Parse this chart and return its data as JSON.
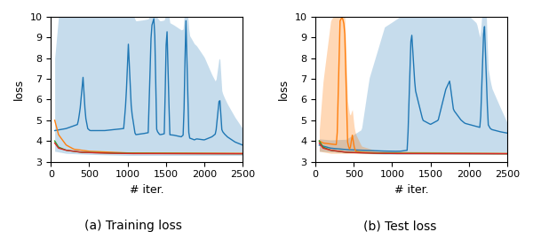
{
  "figsize": [
    6.0,
    2.62
  ],
  "dpi": 100,
  "xlim": [
    0,
    2500
  ],
  "ylim": [
    3,
    10
  ],
  "yticks": [
    3,
    4,
    5,
    6,
    7,
    8,
    9,
    10
  ],
  "xticks": [
    0,
    500,
    1000,
    1500,
    2000,
    2500
  ],
  "xlabel": "# iter.",
  "ylabel": "loss",
  "caption_a": "(a) Training loss",
  "caption_b": "(b) Test loss",
  "blue_color": "#1f77b4",
  "orange_color": "#ff7f0e",
  "green_color": "#2ca02c",
  "red_color": "#d62728",
  "blue_alpha": 0.25,
  "orange_alpha": 0.3
}
